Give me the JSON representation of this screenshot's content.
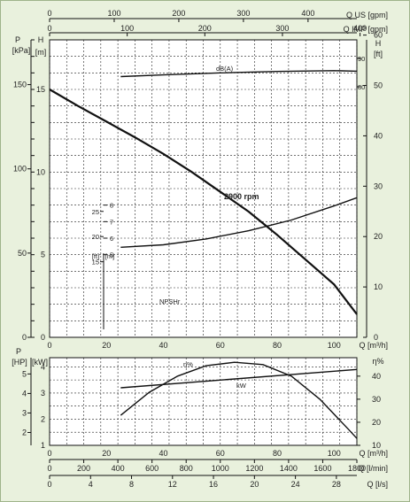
{
  "chart_data": [
    {
      "type": "line",
      "panel": "head",
      "top_axes": {
        "us_gpm": {
          "ticks": [
            "0",
            "100",
            "200",
            "300",
            "400"
          ],
          "label": "Q US [gpm]"
        },
        "imp_gpm": {
          "ticks": [
            "0",
            "100",
            "200",
            "300",
            "400"
          ],
          "label": "Q IMP [gpm]"
        }
      },
      "x": {
        "ticks": [
          "0",
          "20",
          "40",
          "60",
          "80",
          "100"
        ],
        "label": "Q [m³/h]",
        "range": [
          0,
          108
        ]
      },
      "left_axes": {
        "p_kpa": {
          "header": [
            "P",
            "[kPa]"
          ],
          "ticks": [
            "0",
            "50",
            "100",
            "150"
          ]
        },
        "h_m": {
          "header": [
            "H",
            "[m]"
          ],
          "ticks": [
            "0",
            "5",
            "10",
            "15"
          ],
          "range": [
            0,
            18
          ]
        }
      },
      "right_axes": {
        "h_ft": {
          "header": [
            "H",
            "[ft]"
          ],
          "ticks": [
            "0",
            "10",
            "20",
            "30",
            "40",
            "50",
            "60"
          ]
        },
        "dba": {
          "ticks": [
            "80",
            "90"
          ]
        }
      },
      "npsh_inset": {
        "header_ft": "[ft]",
        "header_m": "[m]",
        "m_ticks": [
          "5",
          "6",
          "7",
          "8"
        ],
        "ft_ticks": [
          "15",
          "20",
          "25"
        ]
      },
      "series": [
        {
          "name": "2900 rpm",
          "x": [
            0,
            10,
            20,
            30,
            40,
            50,
            60,
            70,
            80,
            90,
            100,
            108
          ],
          "y": [
            15.0,
            14.0,
            13.05,
            12.1,
            11.1,
            10.0,
            8.8,
            7.6,
            6.2,
            4.7,
            3.2,
            1.4
          ]
        },
        {
          "name": "NPSHr",
          "x": [
            25,
            40,
            55,
            70,
            85,
            100,
            108
          ],
          "y": [
            5.45,
            5.6,
            5.95,
            6.45,
            7.1,
            7.95,
            8.45
          ]
        },
        {
          "name": "dB(A)",
          "x": [
            25,
            40,
            60,
            80,
            100,
            108
          ],
          "y": [
            83.6,
            84.2,
            84.9,
            85.4,
            85.7,
            85.5
          ]
        }
      ],
      "annotations": [
        "2900 rpm",
        "NPSHr",
        "dB(A)"
      ]
    },
    {
      "type": "line",
      "panel": "power",
      "x": {
        "ticks": [
          "0",
          "20",
          "40",
          "60",
          "80",
          "100"
        ],
        "label": "Q [m³/h]",
        "range": [
          0,
          108
        ]
      },
      "left_axes": {
        "p_hp": {
          "header": [
            "P",
            "[HP]"
          ],
          "ticks": [
            "2",
            "3",
            "4",
            "5"
          ]
        },
        "p_kw": {
          "header": [
            "[kW]"
          ],
          "ticks": [
            "1",
            "2",
            "3",
            "4"
          ],
          "range": [
            1,
            4.35
          ]
        }
      },
      "right_axes": {
        "eta": {
          "header": "η%",
          "ticks": [
            "10",
            "20",
            "30",
            "40"
          ],
          "range": [
            10,
            48
          ]
        }
      },
      "series": [
        {
          "name": "kW",
          "x": [
            25,
            108
          ],
          "y": [
            3.2,
            3.9
          ]
        },
        {
          "name": "η%",
          "x": [
            25,
            35,
            45,
            55,
            65,
            75,
            85,
            95,
            105,
            108
          ],
          "y": [
            23,
            33,
            40,
            44.5,
            46,
            45,
            40,
            30,
            17,
            13
          ]
        }
      ],
      "annotations": [
        "η%",
        "kW"
      ]
    }
  ],
  "bottom_axes": {
    "l_min": {
      "ticks": [
        "0",
        "200",
        "400",
        "600",
        "800",
        "1000",
        "1200",
        "1400",
        "1600",
        "1800"
      ],
      "label": "Q [l/min]"
    },
    "l_s": {
      "ticks": [
        "0",
        "4",
        "8",
        "12",
        "16",
        "20",
        "24",
        "28"
      ],
      "label": "Q [l/s]"
    }
  }
}
